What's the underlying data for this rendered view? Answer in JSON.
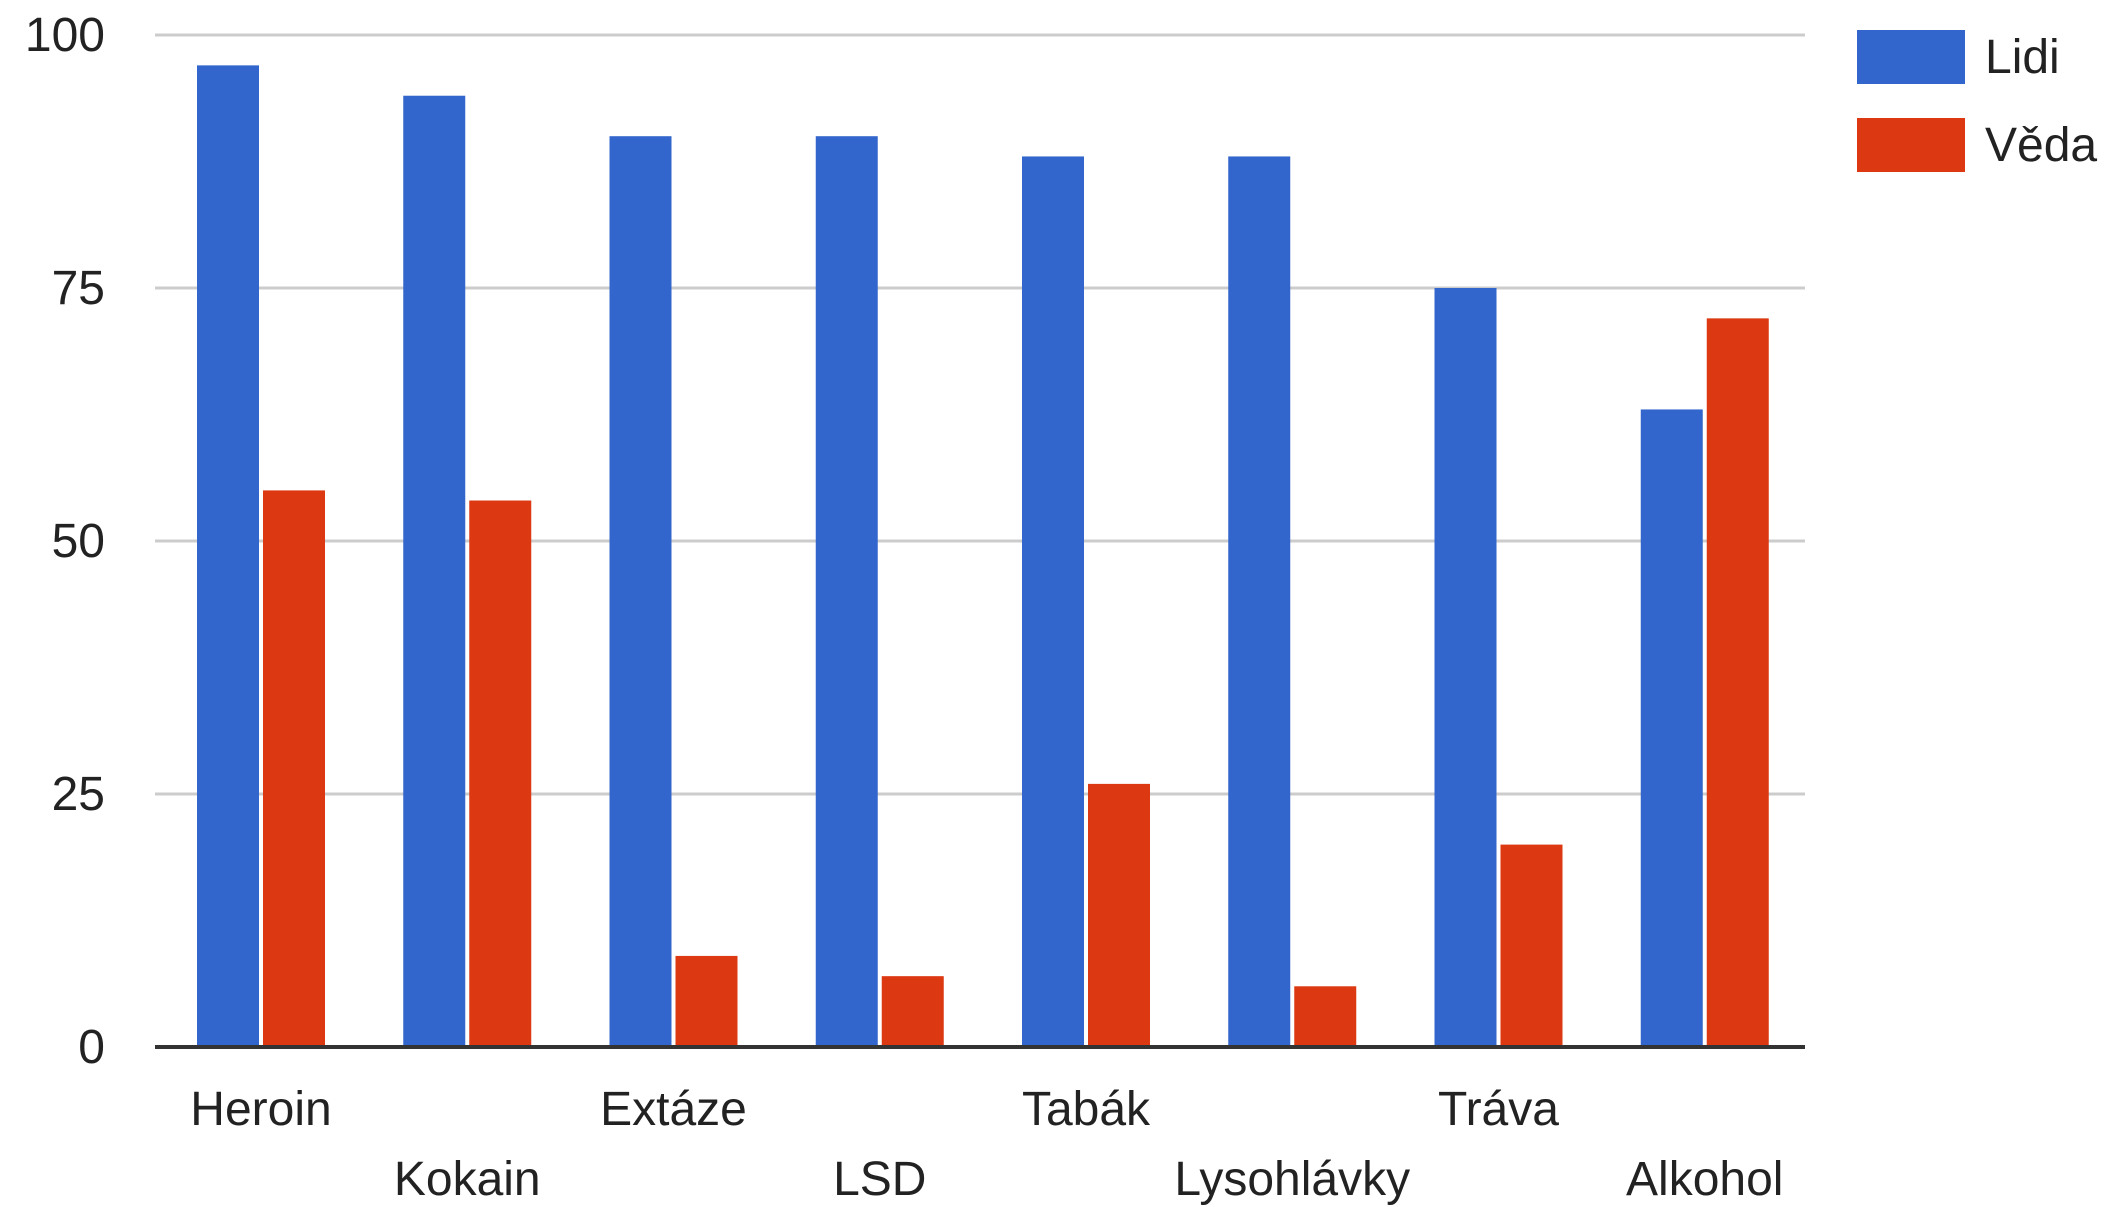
{
  "chart_data": {
    "type": "bar",
    "title": "",
    "xlabel": "",
    "ylabel": "",
    "categories": [
      "Heroin",
      "Kokain",
      "Extáze",
      "LSD",
      "Tabák",
      "Lysohlávky",
      "Tráva",
      "Alkohol"
    ],
    "series": [
      {
        "name": "Lidi",
        "color": "#3366cc",
        "values": [
          97,
          94,
          90,
          90,
          88,
          88,
          75,
          63
        ]
      },
      {
        "name": "Věda",
        "color": "#dc3912",
        "values": [
          55,
          54,
          9,
          7,
          26,
          6,
          20,
          72
        ]
      }
    ],
    "ylim": [
      0,
      100
    ],
    "yticks": [
      0,
      25,
      50,
      75,
      100
    ],
    "grid": true,
    "legend": "top-right"
  }
}
